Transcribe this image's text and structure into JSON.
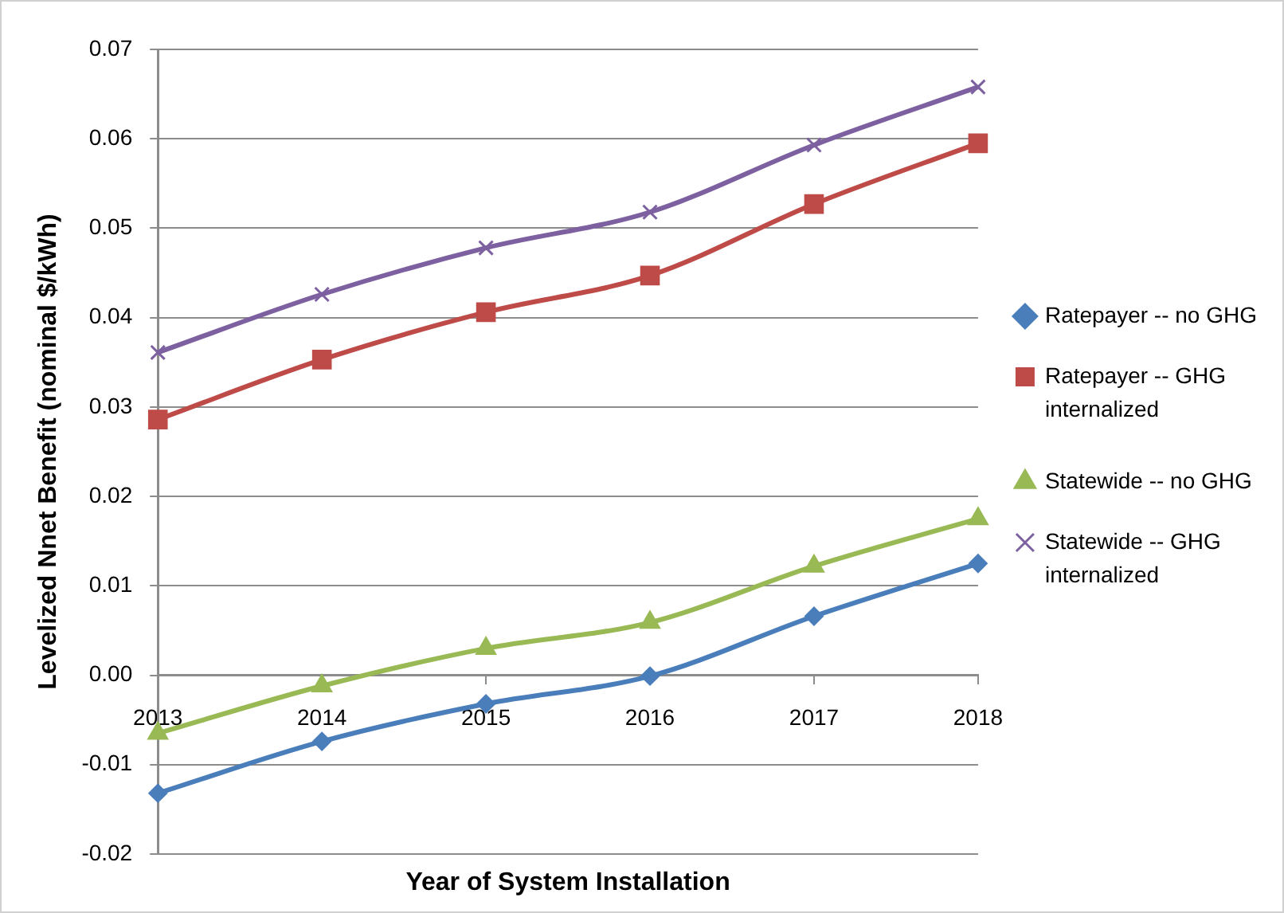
{
  "chart_data": {
    "type": "line",
    "xlabel": "Year of System Installation",
    "ylabel": "Levelized Nnet Benefit (nominal $/kWh)",
    "categories": [
      "2013",
      "2014",
      "2015",
      "2016",
      "2017",
      "2018"
    ],
    "series": [
      {
        "name": "Ratepayer -- no GHG",
        "color": "#4a7ebb",
        "marker": "diamond",
        "values": [
          -0.0132,
          -0.0074,
          -0.0032,
          -0.0001,
          0.0066,
          0.0125
        ]
      },
      {
        "name": "Ratepayer -- GHG internalized",
        "color": "#be4b48",
        "marker": "square",
        "values": [
          0.0286,
          0.0353,
          0.0406,
          0.0447,
          0.0527,
          0.0595
        ]
      },
      {
        "name": "Statewide -- no GHG",
        "color": "#98b954",
        "marker": "triangle",
        "values": [
          -0.0065,
          -0.0012,
          0.003,
          0.0059,
          0.0122,
          0.0175
        ]
      },
      {
        "name": "Statewide -- GHG internalized",
        "color": "#7d60a0",
        "marker": "cross",
        "values": [
          0.0361,
          0.0426,
          0.0478,
          0.0518,
          0.0593,
          0.0658
        ]
      }
    ],
    "ylim": [
      -0.02,
      0.07
    ],
    "yticks": [
      -0.02,
      -0.01,
      {
        "value": 0,
        "label": "0.00"
      },
      0.01,
      0.02,
      0.03,
      0.04,
      0.05,
      0.06,
      0.07
    ],
    "grid": "y",
    "legend": "right",
    "line_style": "solid"
  }
}
